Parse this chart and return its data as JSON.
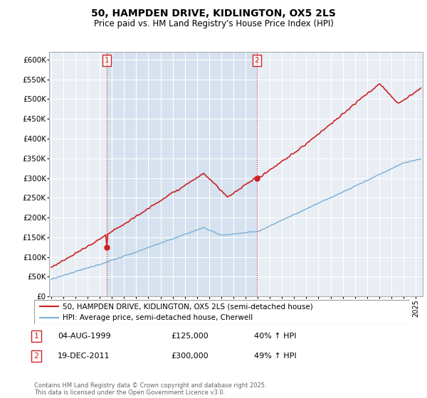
{
  "title": "50, HAMPDEN DRIVE, KIDLINGTON, OX5 2LS",
  "subtitle": "Price paid vs. HM Land Registry's House Price Index (HPI)",
  "ylim": [
    0,
    620000
  ],
  "yticks": [
    0,
    50000,
    100000,
    150000,
    200000,
    250000,
    300000,
    350000,
    400000,
    450000,
    500000,
    550000,
    600000
  ],
  "ytick_labels": [
    "£0",
    "£50K",
    "£100K",
    "£150K",
    "£200K",
    "£250K",
    "£300K",
    "£350K",
    "£400K",
    "£450K",
    "£500K",
    "£550K",
    "£600K"
  ],
  "hpi_color": "#7aaed4",
  "price_color": "#cc2222",
  "sale1_price": 125000,
  "sale2_price": 300000,
  "sale1_label": "1",
  "sale2_label": "2",
  "sale1_date": "04-AUG-1999",
  "sale1_price_str": "£125,000",
  "sale1_hpi": "40% ↑ HPI",
  "sale2_date": "19-DEC-2011",
  "sale2_price_str": "£300,000",
  "sale2_hpi": "49% ↑ HPI",
  "legend_line1": "50, HAMPDEN DRIVE, KIDLINGTON, OX5 2LS (semi-detached house)",
  "legend_line2": "HPI: Average price, semi-detached house, Cherwell",
  "footer": "Contains HM Land Registry data © Crown copyright and database right 2025.\nThis data is licensed under the Open Government Licence v3.0.",
  "background_color": "#ffffff",
  "chart_bg_color": "#e8eef4",
  "grid_color": "#ffffff"
}
